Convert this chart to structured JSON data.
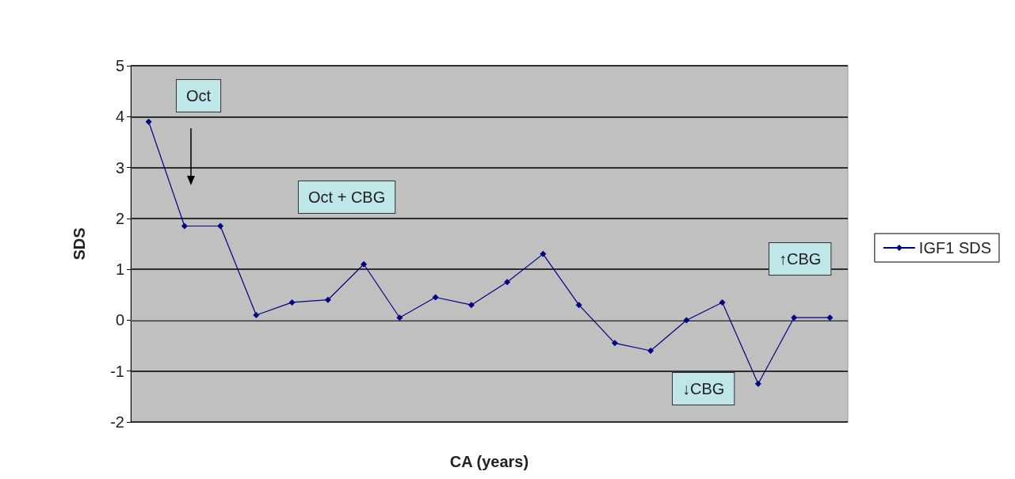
{
  "chart_data": {
    "type": "line",
    "xlabel": "CA (years)",
    "ylabel": "SDS",
    "categories": [
      null,
      null,
      null,
      null,
      null,
      null,
      null,
      null,
      null,
      null,
      null,
      null,
      null,
      null,
      null,
      null,
      null,
      null,
      null,
      null
    ],
    "series": [
      {
        "name": "IGF1 SDS",
        "color": "#000080",
        "values": [
          3.9,
          1.85,
          1.85,
          0.1,
          0.35,
          0.4,
          1.1,
          0.05,
          0.45,
          0.3,
          0.75,
          1.3,
          0.3,
          -0.45,
          -0.6,
          0,
          0.35,
          -1.25,
          0.05,
          0.05
        ]
      }
    ],
    "ylim": [
      -2,
      5
    ],
    "yticks": [
      -2,
      -1,
      0,
      1,
      2,
      3,
      4,
      5
    ],
    "grid": "y",
    "legend": "right",
    "marker": "diamond",
    "line_style": "solid",
    "annotations": [
      "Oct",
      "Oct + CBG",
      "↓CBG",
      "↑CBG"
    ]
  }
}
